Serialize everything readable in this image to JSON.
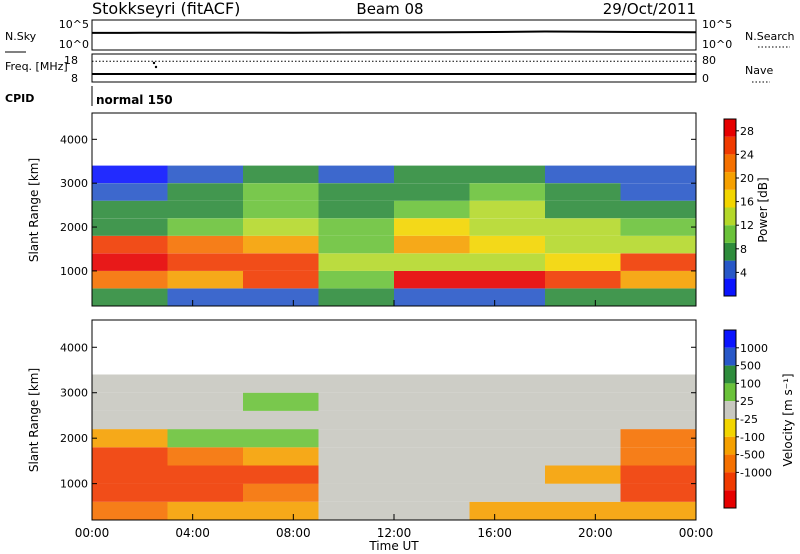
{
  "header": {
    "station": "Stokkseyri (fitACF)",
    "beam": "Beam 08",
    "date": "29/Oct/2011"
  },
  "chart_data": [
    {
      "type": "line",
      "panel": "noise",
      "left_label": "N.Sky",
      "right_label": "N.Search",
      "left_ticks": [
        "10^5",
        "10^0"
      ],
      "right_ticks": [
        "10^5",
        "10^0"
      ],
      "scale": "log",
      "ylim": [
        1,
        100000
      ],
      "x_hours": [
        0,
        2,
        4,
        6,
        8,
        10,
        12,
        14,
        16,
        18,
        20,
        22,
        24
      ],
      "n_sky": [
        800,
        820,
        860,
        900,
        880,
        950,
        1000,
        1100,
        1200,
        1500,
        1300,
        1200,
        1100
      ]
    },
    {
      "type": "line",
      "panel": "frequency",
      "left_label": "Freq. [MHz]",
      "right_label": "Nave",
      "left_ticks": [
        "18",
        "8"
      ],
      "right_ticks": [
        "80",
        "0"
      ],
      "freq_ylim": [
        8,
        18
      ],
      "nave_ylim": [
        0,
        80
      ],
      "freq_mhz": 10,
      "nave": 20
    },
    {
      "type": "text",
      "panel": "cpid",
      "label": "CPID",
      "mode_label": "normal 150"
    },
    {
      "type": "heatmap",
      "panel": "power",
      "ylabel": "Slant Range [km]",
      "y_ticks": [
        "1000",
        "2000",
        "3000",
        "4000"
      ],
      "ylim": [
        200,
        4600
      ],
      "colorbar_label": "Power [dB]",
      "colorbar_ticks": [
        "4",
        "8",
        "12",
        "16",
        "20",
        "24",
        "28"
      ],
      "colorbar_range": [
        0,
        30
      ],
      "colors": [
        "#0a14ff",
        "#2858c8",
        "#2e8c3c",
        "#6ac23a",
        "#b4d82a",
        "#f2d500",
        "#f5a000",
        "#f57000",
        "#f03a00",
        "#e60000"
      ],
      "ranges_km": [
        400,
        800,
        1200,
        1600,
        2000,
        2400,
        2800,
        3200
      ],
      "hours": [
        0,
        3,
        6,
        9,
        12,
        15,
        18,
        21
      ],
      "values_db": [
        [
          6,
          5,
          4,
          6,
          5,
          4,
          6,
          8
        ],
        [
          22,
          20,
          24,
          10,
          28,
          28,
          26,
          18
        ],
        [
          27,
          26,
          26,
          14,
          14,
          14,
          16,
          24
        ],
        [
          24,
          22,
          20,
          10,
          18,
          16,
          14,
          14
        ],
        [
          8,
          10,
          14,
          10,
          16,
          14,
          12,
          10
        ],
        [
          6,
          8,
          10,
          6,
          10,
          12,
          8,
          6
        ],
        [
          4,
          6,
          10,
          6,
          8,
          10,
          6,
          4
        ],
        [
          2,
          4,
          8,
          4,
          6,
          8,
          4,
          4
        ]
      ]
    },
    {
      "type": "heatmap",
      "panel": "velocity",
      "xlabel": "Time UT",
      "ylabel": "Slant Range [km]",
      "x_ticks": [
        "00:00",
        "04:00",
        "08:00",
        "12:00",
        "16:00",
        "20:00",
        "00:00"
      ],
      "y_ticks": [
        "1000",
        "2000",
        "3000",
        "4000"
      ],
      "ylim": [
        200,
        4600
      ],
      "colorbar_label": "Velocity [m s⁻¹]",
      "colorbar_ticks": [
        "1000",
        "500",
        "100",
        "25",
        "-25",
        "-100",
        "-500",
        "-1000"
      ],
      "colors": [
        "#0a14ff",
        "#2858c8",
        "#2e8c3c",
        "#6ac23a",
        "#c8c8c0",
        "#f2d500",
        "#f5a000",
        "#f57000",
        "#f03a00",
        "#e60000"
      ],
      "ranges_km": [
        400,
        800,
        1200,
        1600,
        2000,
        2400,
        2800,
        3200
      ],
      "hours": [
        0,
        3,
        6,
        9,
        12,
        15,
        18,
        21
      ],
      "values_ms": [
        [
          -300,
          -200,
          -150,
          0,
          0,
          -100,
          -150,
          -200
        ],
        [
          -600,
          -500,
          -400,
          0,
          0,
          0,
          0,
          -500
        ],
        [
          -700,
          -600,
          -500,
          0,
          0,
          0,
          -100,
          -600
        ],
        [
          -500,
          -300,
          -200,
          0,
          0,
          0,
          0,
          -400
        ],
        [
          -200,
          50,
          50,
          0,
          0,
          0,
          0,
          -300
        ],
        [
          0,
          0,
          0,
          0,
          0,
          0,
          0,
          0
        ],
        [
          0,
          0,
          50,
          0,
          0,
          0,
          0,
          0
        ],
        [
          0,
          0,
          0,
          0,
          0,
          0,
          0,
          0
        ]
      ]
    }
  ]
}
